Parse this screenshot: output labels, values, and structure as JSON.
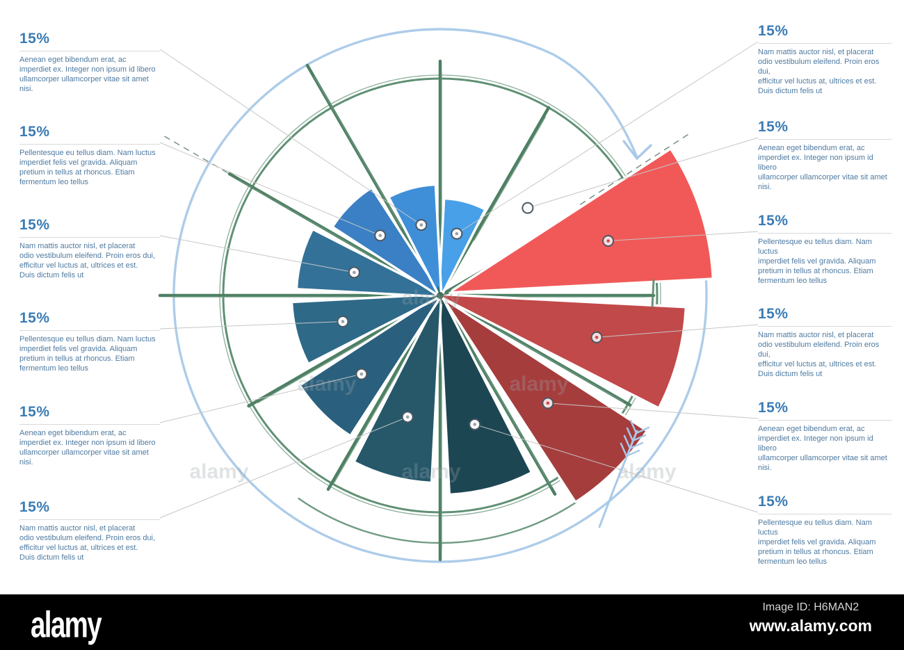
{
  "colors": {
    "heading": "#3a7cb6",
    "body_text": "#4e7aa1",
    "underline": "#d9d9d9",
    "leader": "#c6c6c6",
    "spoke_green": "#4e8064",
    "spoke_green_light": "#6f9a81",
    "rim_green": "#578a6d",
    "blue_circle": "#a9c9e8",
    "marker_stroke": "#4b5763",
    "marker_fill_blue": "#fbfbfb",
    "marker_fill_red": "#f7dede",
    "marker_dot_blue": "#97a3ad",
    "marker_dot_red": "#c34f4f",
    "watermark_gray": "#9aa4a8",
    "background": "#ffffff",
    "bar_black": "#000000"
  },
  "labels_left": [
    {
      "pct": "15%",
      "text": "Aenean eget bibendum erat, ac\nimperdiet ex. Integer non ipsum id libero\nullamcorper ullamcorper vitae sit amet nisi.",
      "segment": 12
    },
    {
      "pct": "15%",
      "text": "Pellentesque eu tellus diam. Nam luctus\nimperdiet felis vel gravida. Aliquam\npretium in tellus at rhoncus. Etiam\nfermentum leo tellus",
      "segment": 11
    },
    {
      "pct": "15%",
      "text": "Nam mattis auctor nisl, et placerat\nodio vestibulum eleifend. Proin eros dui,\nefficitur vel luctus at, ultrices et est.\nDuis dictum felis ut",
      "segment": 10
    },
    {
      "pct": "15%",
      "text": "Pellentesque eu tellus diam. Nam luctus\nimperdiet felis vel gravida. Aliquam\npretium in tellus at rhoncus. Etiam\nfermentum leo tellus",
      "segment": 9
    },
    {
      "pct": "15%",
      "text": "Aenean eget bibendum erat, ac\nimperdiet ex. Integer non ipsum id libero\nullamcorper ullamcorper vitae sit amet nisi.",
      "segment": 8
    },
    {
      "pct": "15%",
      "text": "Nam mattis auctor nisl, et placerat\nodio vestibulum eleifend. Proin eros dui,\nefficitur vel luctus at, ultrices et est.\nDuis dictum felis ut",
      "segment": 7
    }
  ],
  "labels_right": [
    {
      "pct": "15%",
      "text": "Nam mattis auctor nisl, et placerat\nodio vestibulum eleifend. Proin eros dui,\nefficitur vel luctus at, ultrices et est.\nDuis dictum felis ut",
      "segment": 1
    },
    {
      "pct": "15%",
      "text": "Aenean eget bibendum erat, ac\nimperdiet ex. Integer non ipsum id libero\nullamcorper ullamcorper vitae sit amet nisi.",
      "segment": 2
    },
    {
      "pct": "15%",
      "text": "Pellentesque eu tellus diam. Nam luctus\nimperdiet felis vel gravida. Aliquam\npretium in tellus at rhoncus. Etiam\nfermentum leo tellus",
      "segment": 3
    },
    {
      "pct": "15%",
      "text": "Nam mattis auctor nisl, et placerat\nodio vestibulum eleifend. Proin eros dui,\nefficitur vel luctus at, ultrices et est.\nDuis dictum felis ut",
      "segment": 4
    },
    {
      "pct": "15%",
      "text": "Aenean eget bibendum erat, ac\nimperdiet ex. Integer non ipsum id libero\nullamcorper ullamcorper vitae sit amet nisi.",
      "segment": 5
    },
    {
      "pct": "15%",
      "text": "Pellentesque eu tellus diam. Nam luctus\nimperdiet felis vel gravida. Aliquam\npretium in tellus at rhoncus. Etiam\nfermentum leo tellus",
      "segment": 6
    }
  ],
  "chart_data": {
    "type": "pie",
    "title": "",
    "unit": "percent",
    "note": "hand-drawn compass-wheel pie infographic; 12 sectors of 15% each, sector 2 unfilled",
    "segments": [
      {
        "id": 1,
        "value": 15,
        "color": "#47a0e8",
        "start_deg": 63,
        "end_deg": 87,
        "radius": 138,
        "explode": 0,
        "marker_r": 92,
        "empty": false,
        "group": "blue"
      },
      {
        "id": 2,
        "value": 15,
        "color": null,
        "start_deg": 33,
        "end_deg": 57,
        "radius": 0,
        "explode": 0,
        "marker_r": 178,
        "empty": true,
        "group": "none"
      },
      {
        "id": 3,
        "value": 15,
        "color": "#f15959",
        "start_deg": 3,
        "end_deg": 33,
        "radius": 372,
        "explode": 20,
        "marker_r": 234,
        "empty": false,
        "group": "red"
      },
      {
        "id": 4,
        "value": 15,
        "color": "#c24949",
        "start_deg": -27,
        "end_deg": -3,
        "radius": 352,
        "explode": 0,
        "marker_r": 233,
        "empty": false,
        "group": "red"
      },
      {
        "id": 5,
        "value": 15,
        "color": "#a63d3d",
        "start_deg": -57,
        "end_deg": -33,
        "radius": 340,
        "explode": 14,
        "marker_r": 205,
        "empty": false,
        "group": "red"
      },
      {
        "id": 6,
        "value": 15,
        "color": "#1d4653",
        "start_deg": -87,
        "end_deg": -63,
        "radius": 285,
        "explode": 0,
        "marker_r": 192,
        "empty": false,
        "group": "blue"
      },
      {
        "id": 7,
        "value": 15,
        "color": "#26586a",
        "start_deg": -117,
        "end_deg": -93,
        "radius": 268,
        "explode": 0,
        "marker_r": 181,
        "empty": false,
        "group": "blue"
      },
      {
        "id": 8,
        "value": 15,
        "color": "#2a607e",
        "start_deg": -147,
        "end_deg": -123,
        "radius": 238,
        "explode": 0,
        "marker_r": 160,
        "empty": false,
        "group": "blue"
      },
      {
        "id": 9,
        "value": 15,
        "color": "#2e6988",
        "start_deg": -177,
        "end_deg": -153,
        "radius": 212,
        "explode": 0,
        "marker_r": 145,
        "empty": false,
        "group": "blue"
      },
      {
        "id": 10,
        "value": 15,
        "color": "#337198",
        "start_deg": 153,
        "end_deg": 177,
        "radius": 205,
        "explode": 0,
        "marker_r": 128,
        "empty": false,
        "group": "blue"
      },
      {
        "id": 11,
        "value": 15,
        "color": "#3b80c4",
        "start_deg": 123,
        "end_deg": 147,
        "radius": 182,
        "explode": 0,
        "marker_r": 122,
        "empty": false,
        "group": "blue"
      },
      {
        "id": 12,
        "value": 15,
        "color": "#3f8fd8",
        "start_deg": 93,
        "end_deg": 117,
        "radius": 158,
        "explode": 0,
        "marker_r": 105,
        "empty": false,
        "group": "blue"
      }
    ],
    "spokes": [
      {
        "angle_deg": 0,
        "length": 307
      },
      {
        "angle_deg": 30,
        "length": 300
      },
      {
        "angle_deg": 60,
        "length": 312
      },
      {
        "angle_deg": 90,
        "length": 337
      },
      {
        "angle_deg": 120,
        "length": 382
      },
      {
        "angle_deg": 150,
        "length": 350
      },
      {
        "angle_deg": 180,
        "length": 403
      },
      {
        "angle_deg": 210,
        "length": 318
      },
      {
        "angle_deg": 240,
        "length": 322
      },
      {
        "angle_deg": 270,
        "length": 380
      },
      {
        "angle_deg": 300,
        "length": 330
      },
      {
        "angle_deg": 330,
        "length": 315
      }
    ],
    "dashed_rays": [
      {
        "angle_deg": 33,
        "r0": 240,
        "r1": 430
      },
      {
        "angle_deg": 150,
        "r0": 225,
        "r1": 465
      }
    ],
    "rim_radius": 312,
    "outer_blue_radius": 383,
    "legend_position": "none",
    "grid": false
  },
  "watermark": {
    "brand": "alamy",
    "image_id": "Image ID: H6MAN2",
    "url": "www.alamy.com",
    "tile_text": "alamy"
  }
}
